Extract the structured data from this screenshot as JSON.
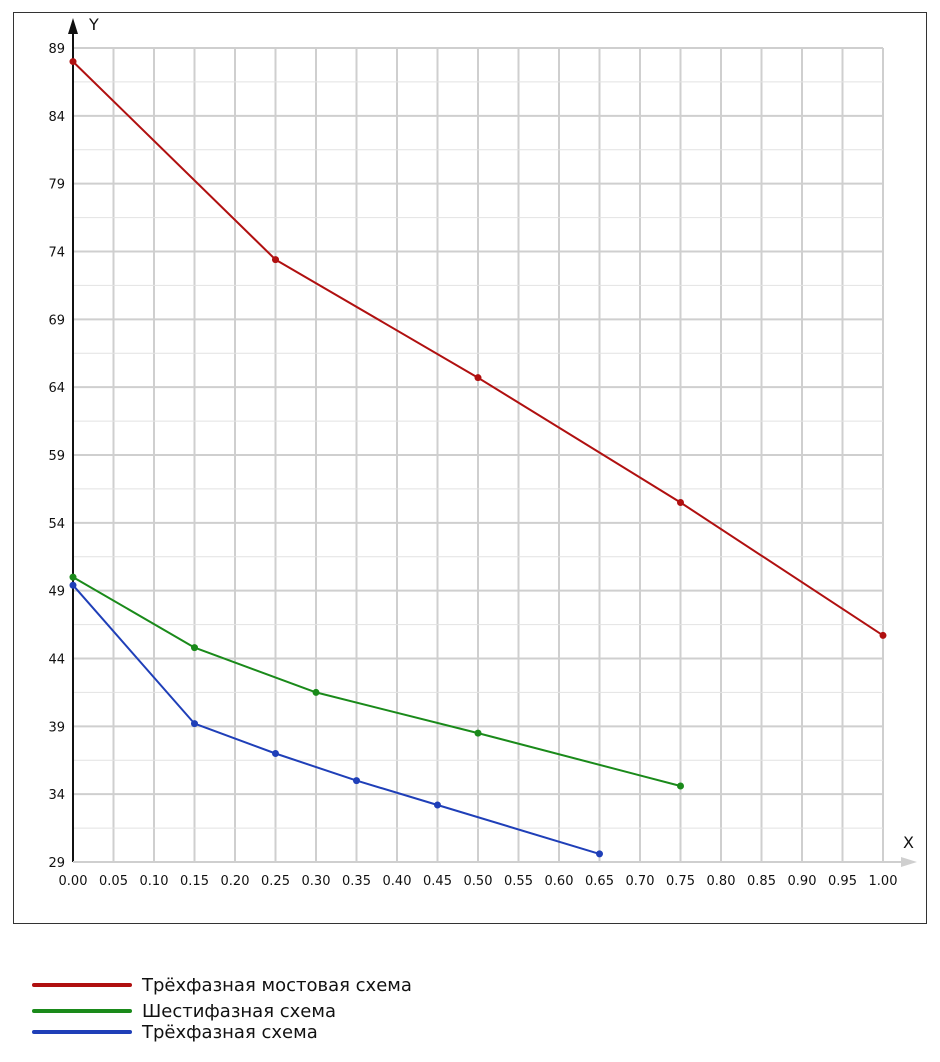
{
  "chart_data": {
    "type": "line",
    "xlabel": "X",
    "ylabel": "Y",
    "xlim": [
      0,
      1
    ],
    "ylim": [
      29,
      89
    ],
    "x_ticks": [
      "0.00",
      "0.05",
      "0.10",
      "0.15",
      "0.20",
      "0.25",
      "0.30",
      "0.35",
      "0.40",
      "0.45",
      "0.50",
      "0.55",
      "0.60",
      "0.65",
      "0.70",
      "0.75",
      "0.80",
      "0.85",
      "0.90",
      "0.95",
      "1.00"
    ],
    "y_ticks": [
      "29",
      "34",
      "39",
      "44",
      "49",
      "54",
      "59",
      "64",
      "69",
      "74",
      "79",
      "84",
      "89"
    ],
    "grid": true,
    "legend_position": "bottom-left",
    "series": [
      {
        "name": "Трёхфазная мостовая схема",
        "color": "#b01010",
        "points": [
          [
            0.0,
            88.0
          ],
          [
            0.25,
            73.4
          ],
          [
            0.5,
            64.7
          ],
          [
            0.75,
            55.5
          ],
          [
            1.0,
            45.7
          ]
        ]
      },
      {
        "name": "Шестифазная схема",
        "color": "#1a8a1a",
        "points": [
          [
            0.0,
            50.0
          ],
          [
            0.15,
            44.8
          ],
          [
            0.3,
            41.5
          ],
          [
            0.5,
            38.5
          ],
          [
            0.75,
            34.6
          ]
        ]
      },
      {
        "name": "Трёхфазная схема",
        "color": "#1f3fb8",
        "points": [
          [
            0.0,
            49.4
          ],
          [
            0.15,
            39.2
          ],
          [
            0.25,
            37.0
          ],
          [
            0.35,
            35.0
          ],
          [
            0.45,
            33.2
          ],
          [
            0.65,
            29.6
          ]
        ]
      }
    ]
  }
}
